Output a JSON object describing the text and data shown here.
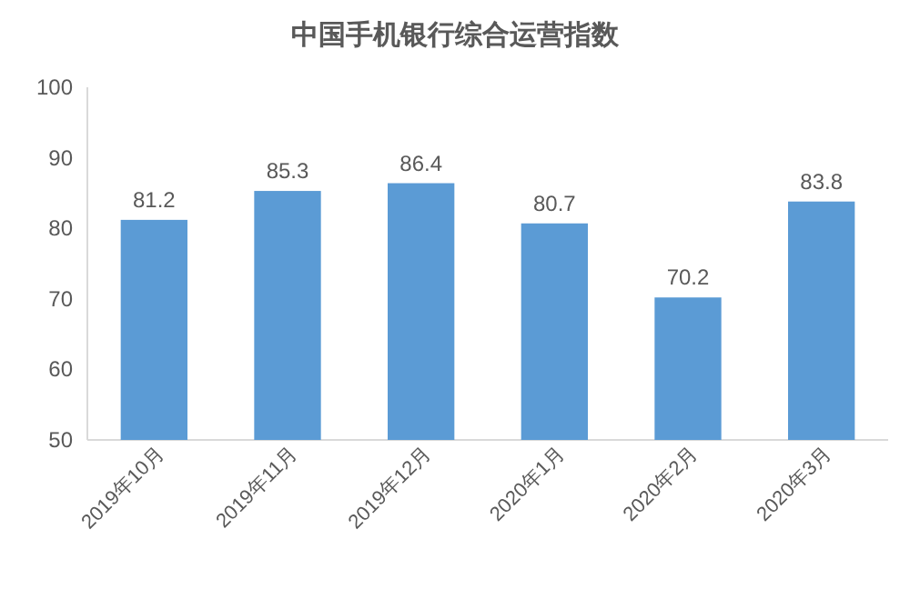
{
  "chart_data": {
    "type": "bar",
    "title": "中国手机银行综合运营指数",
    "categories": [
      "2019年10月",
      "2019年11月",
      "2019年12月",
      "2020年1月",
      "2020年2月",
      "2020年3月"
    ],
    "values": [
      81.2,
      85.3,
      86.4,
      80.7,
      70.2,
      83.8
    ],
    "color": "#5b9bd5",
    "ylim": [
      50,
      100
    ],
    "yticks": [
      50,
      60,
      70,
      80,
      90,
      100
    ],
    "data_labels": true
  }
}
